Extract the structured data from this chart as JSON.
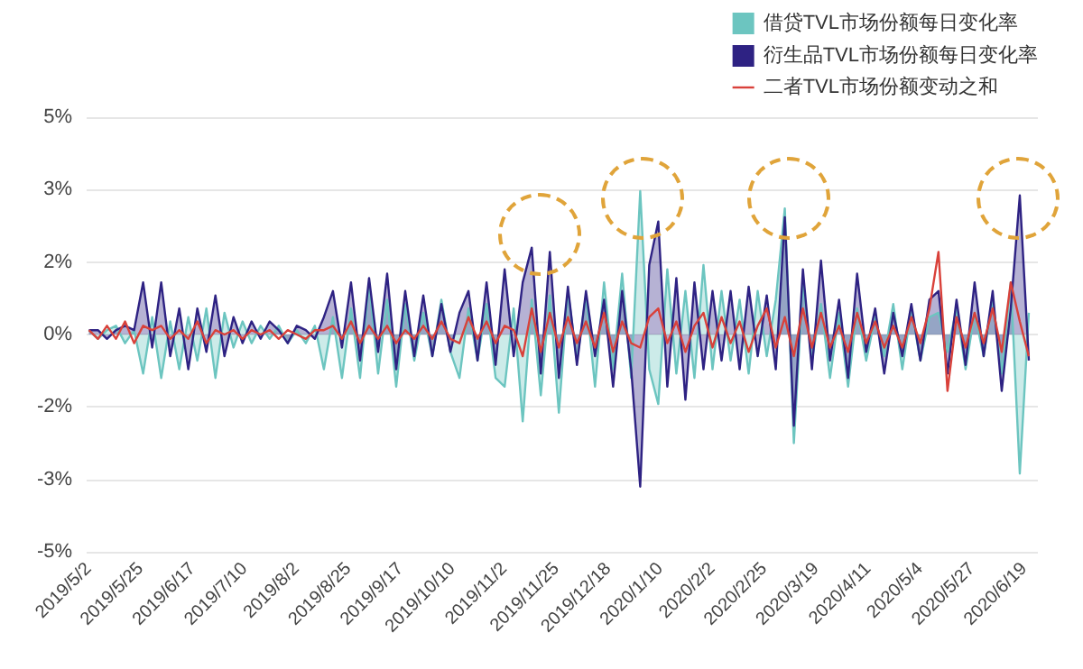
{
  "chart_data": {
    "type": "line",
    "x": [
      "2019-05-02",
      "2019-05-06",
      "2019-05-10",
      "2019-05-14",
      "2019-05-18",
      "2019-05-22",
      "2019-05-26",
      "2019-05-30",
      "2019-06-03",
      "2019-06-07",
      "2019-06-11",
      "2019-06-15",
      "2019-06-19",
      "2019-06-23",
      "2019-06-27",
      "2019-07-01",
      "2019-07-05",
      "2019-07-09",
      "2019-07-13",
      "2019-07-17",
      "2019-07-21",
      "2019-07-25",
      "2019-07-29",
      "2019-08-02",
      "2019-08-06",
      "2019-08-10",
      "2019-08-14",
      "2019-08-18",
      "2019-08-22",
      "2019-08-26",
      "2019-08-30",
      "2019-09-03",
      "2019-09-07",
      "2019-09-11",
      "2019-09-15",
      "2019-09-19",
      "2019-09-23",
      "2019-09-27",
      "2019-10-01",
      "2019-10-05",
      "2019-10-09",
      "2019-10-13",
      "2019-10-17",
      "2019-10-21",
      "2019-10-25",
      "2019-10-29",
      "2019-11-02",
      "2019-11-06",
      "2019-11-10",
      "2019-11-14",
      "2019-11-18",
      "2019-11-22",
      "2019-11-26",
      "2019-11-30",
      "2019-12-04",
      "2019-12-08",
      "2019-12-12",
      "2019-12-16",
      "2019-12-20",
      "2019-12-24",
      "2019-12-28",
      "2020-01-01",
      "2020-01-05",
      "2020-01-09",
      "2020-01-13",
      "2020-01-17",
      "2020-01-21",
      "2020-01-25",
      "2020-01-29",
      "2020-02-02",
      "2020-02-06",
      "2020-02-10",
      "2020-02-14",
      "2020-02-18",
      "2020-02-22",
      "2020-02-26",
      "2020-03-01",
      "2020-03-05",
      "2020-03-09",
      "2020-03-13",
      "2020-03-17",
      "2020-03-21",
      "2020-03-25",
      "2020-03-29",
      "2020-04-02",
      "2020-04-06",
      "2020-04-10",
      "2020-04-14",
      "2020-04-18",
      "2020-04-22",
      "2020-04-26",
      "2020-04-30",
      "2020-05-04",
      "2020-05-08",
      "2020-05-12",
      "2020-05-16",
      "2020-05-20",
      "2020-05-24",
      "2020-05-28",
      "2020-06-01",
      "2020-06-05",
      "2020-06-09",
      "2020-06-13",
      "2020-06-17",
      "2020-06-21"
    ],
    "series": [
      {
        "name": "借贷TVL市场份额每日变化率",
        "type": "area",
        "color": "#6cc5c0",
        "values": [
          0.1,
          -0.1,
          0.1,
          0.2,
          -0.2,
          0.1,
          -0.9,
          0.4,
          -1.0,
          0.3,
          -0.8,
          0.4,
          -0.6,
          0.6,
          -1.0,
          0.5,
          -0.3,
          0.3,
          -0.2,
          0.2,
          -0.1,
          0.2,
          -0.2,
          0.1,
          -0.2,
          0.2,
          -0.8,
          0.4,
          -1.0,
          0.6,
          -1.0,
          1.2,
          -0.9,
          0.8,
          -1.2,
          0.7,
          -0.6,
          0.5,
          -0.5,
          0.8,
          -0.4,
          -1.0,
          0.6,
          -0.6,
          0.7,
          -1.0,
          -1.2,
          0.6,
          -2.0,
          0.8,
          -1.4,
          0.9,
          -1.8,
          1.0,
          -0.6,
          0.9,
          -1.2,
          1.2,
          -0.8,
          1.4,
          -1.0,
          3.3,
          -0.8,
          -1.6,
          1.5,
          -0.9,
          1.0,
          -1.0,
          1.6,
          -0.8,
          1.0,
          -0.6,
          0.8,
          -0.9,
          1.0,
          -0.5,
          0.8,
          2.9,
          -2.5,
          1.2,
          -0.6,
          0.7,
          -1.0,
          0.5,
          -1.2,
          0.6,
          -0.6,
          0.4,
          -0.5,
          0.7,
          -0.8,
          0.6,
          -0.6,
          0.4,
          0.5,
          -0.4,
          0.6,
          -0.8,
          0.5,
          -0.5,
          0.8,
          -0.9,
          1.2,
          -3.2,
          0.5
        ]
      },
      {
        "name": "衍生品TVL市场份额每日变化率",
        "type": "area",
        "color": "#2e2283",
        "values": [
          0.1,
          0.1,
          -0.1,
          0.1,
          0.2,
          0.1,
          1.2,
          -0.3,
          1.2,
          -0.5,
          0.6,
          -0.8,
          0.6,
          -0.4,
          0.9,
          -0.5,
          0.4,
          -0.2,
          0.3,
          -0.1,
          0.3,
          0.1,
          -0.2,
          0.2,
          0.1,
          -0.1,
          0.4,
          1.0,
          -0.3,
          1.2,
          -0.6,
          1.3,
          -0.4,
          1.4,
          -0.8,
          1.0,
          -0.5,
          0.9,
          -0.5,
          0.7,
          -0.4,
          0.5,
          1.0,
          -0.6,
          1.2,
          -0.7,
          1.5,
          -0.5,
          1.2,
          2.0,
          -0.9,
          1.9,
          -1.0,
          1.1,
          -0.7,
          1.0,
          -0.5,
          0.8,
          -1.2,
          1.0,
          -0.8,
          -3.5,
          1.6,
          2.6,
          -1.2,
          1.3,
          -1.5,
          1.2,
          -0.8,
          1.0,
          -0.6,
          1.0,
          -0.8,
          1.1,
          -0.5,
          0.9,
          -0.8,
          2.7,
          -2.1,
          1.5,
          -0.8,
          1.7,
          -0.6,
          0.8,
          -1.0,
          1.4,
          -0.4,
          0.6,
          -0.9,
          0.5,
          -0.5,
          0.7,
          -0.6,
          0.8,
          1.0,
          -0.9,
          0.8,
          -0.7,
          1.2,
          -0.5,
          1.0,
          -1.3,
          0.6,
          3.2,
          -0.6
        ]
      },
      {
        "name": "二者TVL市场份额变动之和",
        "color": "#d9413a",
        "values": [
          0.1,
          -0.1,
          0.2,
          -0.1,
          0.3,
          -0.2,
          0.2,
          0.1,
          0.2,
          -0.1,
          0.1,
          -0.1,
          0.3,
          -0.2,
          0.1,
          0.0,
          0.1,
          -0.1,
          0.1,
          0.0,
          0.1,
          -0.1,
          0.1,
          0.0,
          -0.1,
          0.1,
          0.1,
          0.2,
          -0.1,
          0.3,
          -0.2,
          0.2,
          -0.1,
          0.2,
          -0.2,
          0.1,
          -0.1,
          0.2,
          -0.1,
          0.3,
          -0.1,
          -0.2,
          0.4,
          -0.1,
          0.3,
          -0.2,
          0.2,
          0.1,
          -0.5,
          0.6,
          -0.4,
          0.5,
          -0.3,
          0.4,
          -0.2,
          0.3,
          -0.3,
          0.5,
          -0.4,
          0.3,
          -0.2,
          -0.3,
          0.4,
          0.6,
          -0.2,
          0.3,
          -0.4,
          0.2,
          0.5,
          -0.3,
          0.4,
          -0.2,
          0.3,
          -0.4,
          0.2,
          0.6,
          -0.3,
          0.4,
          -0.5,
          0.6,
          -0.3,
          0.5,
          -0.3,
          0.2,
          -0.4,
          0.5,
          -0.2,
          0.3,
          -0.3,
          0.2,
          -0.3,
          0.4,
          -0.2,
          0.6,
          1.9,
          -1.3,
          0.4,
          -0.3,
          0.5,
          -0.2,
          0.6,
          -0.4,
          1.2,
          0.3,
          -0.5
        ]
      }
    ],
    "xlim": [
      "2019-05-01",
      "2020-06-25"
    ],
    "xticks": [
      {
        "value": "2019-05-02",
        "label": "2019/5/2"
      },
      {
        "value": "2019-05-25",
        "label": "2019/5/25"
      },
      {
        "value": "2019-06-17",
        "label": "2019/6/17"
      },
      {
        "value": "2019-07-10",
        "label": "2019/7/10"
      },
      {
        "value": "2019-08-02",
        "label": "2019/8/2"
      },
      {
        "value": "2019-08-25",
        "label": "2019/8/25"
      },
      {
        "value": "2019-09-17",
        "label": "2019/9/17"
      },
      {
        "value": "2019-10-10",
        "label": "2019/10/10"
      },
      {
        "value": "2019-11-02",
        "label": "2019/11/2"
      },
      {
        "value": "2019-11-25",
        "label": "2019/11/25"
      },
      {
        "value": "2019-12-18",
        "label": "2019/12/18"
      },
      {
        "value": "2020-01-10",
        "label": "2020/1/10"
      },
      {
        "value": "2020-02-02",
        "label": "2020/2/2"
      },
      {
        "value": "2020-02-25",
        "label": "2020/2/25"
      },
      {
        "value": "2020-03-19",
        "label": "2020/3/19"
      },
      {
        "value": "2020-04-11",
        "label": "2020/4/11"
      },
      {
        "value": "2020-05-04",
        "label": "2020/5/4"
      },
      {
        "value": "2020-05-27",
        "label": "2020/5/27"
      },
      {
        "value": "2020-06-19",
        "label": "2020/6/19"
      }
    ],
    "ylim": [
      -5,
      5
    ],
    "yticks": [
      {
        "value": -5,
        "label": "-5%"
      },
      {
        "value": -3.333,
        "label": "-3%"
      },
      {
        "value": -1.667,
        "label": "-2%"
      },
      {
        "value": 0,
        "label": "0%"
      },
      {
        "value": 1.667,
        "label": "2%"
      },
      {
        "value": 3.333,
        "label": "3%"
      },
      {
        "value": 5,
        "label": "5%"
      }
    ],
    "grid": "y",
    "legend": "top right"
  }
}
